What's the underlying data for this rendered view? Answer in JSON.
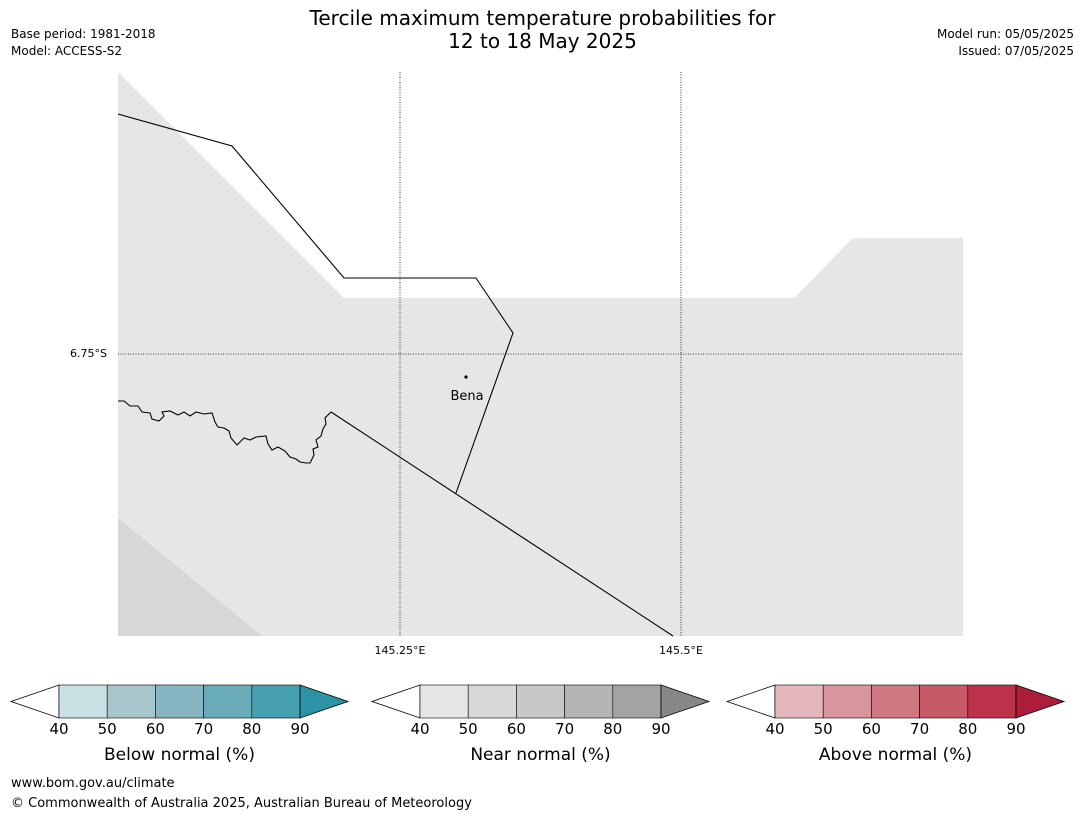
{
  "title": {
    "line1": "Tercile maximum temperature probabilities for",
    "line2": "12 to 18 May 2025"
  },
  "meta_left": {
    "base_period": "Base period: 1981-2018",
    "model": "Model: ACCESS-S2"
  },
  "meta_right": {
    "model_run": "Model run: 05/05/2025",
    "issued": "Issued: 07/05/2025"
  },
  "map": {
    "latitude_label": "6.75°S",
    "longitude_labels": [
      "145.25°E",
      "145.5°E"
    ],
    "place": {
      "name": "Bena"
    },
    "land_color": "#e6e6e6",
    "near_normal_40_color": "#e6e6e6",
    "below_normal_background": "#ffffff"
  },
  "colorbars": [
    {
      "title": "Below normal (%)",
      "ticks": [
        "40",
        "50",
        "60",
        "70",
        "80",
        "90"
      ],
      "colors": [
        "#c9e0e5",
        "#a7c5cb",
        "#88b5c2",
        "#6aabba",
        "#47a0b0",
        "#2b93a4"
      ]
    },
    {
      "title": "Near normal (%)",
      "ticks": [
        "40",
        "50",
        "60",
        "70",
        "80",
        "90"
      ],
      "colors": [
        "#e6e6e6",
        "#d8d8d8",
        "#c8c8c8",
        "#b5b5b5",
        "#a3a3a3",
        "#878787"
      ]
    },
    {
      "title": "Above normal (%)",
      "ticks": [
        "40",
        "50",
        "60",
        "70",
        "80",
        "90"
      ],
      "colors": [
        "#e3b7bc",
        "#d8959d",
        "#cf7880",
        "#c65a67",
        "#bd334b",
        "#ab1d3a"
      ]
    }
  ],
  "footer": {
    "website": "www.bom.gov.au/climate",
    "copyright": "© Commonwealth of Australia 2025, Australian Bureau of Meteorology"
  }
}
